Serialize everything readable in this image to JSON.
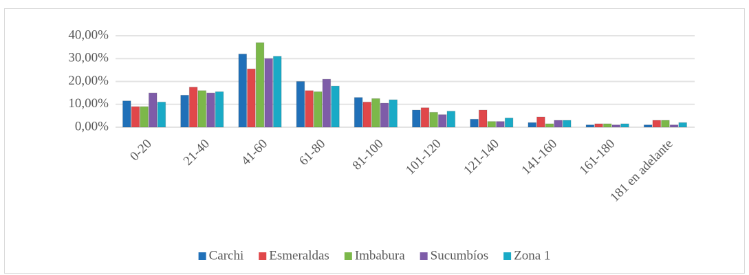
{
  "chart_data": {
    "type": "bar",
    "categories": [
      "0-20",
      "21-40",
      "41-60",
      "61-80",
      "81-100",
      "101-120",
      "121-140",
      "141-160",
      "161-180",
      "181 en adelante"
    ],
    "series": [
      {
        "name": "Carchi",
        "color": "#2070b8",
        "values": [
          11.5,
          14,
          32,
          20,
          13,
          7.5,
          3.5,
          2,
          1,
          1
        ]
      },
      {
        "name": "Esmeraldas",
        "color": "#e0474a",
        "values": [
          9,
          17.5,
          25.5,
          16,
          11,
          8.5,
          7.5,
          4.5,
          1.5,
          3
        ]
      },
      {
        "name": "Imbabura",
        "color": "#7cb84a",
        "values": [
          9,
          16,
          37,
          15.5,
          12.5,
          6.5,
          2.5,
          1.5,
          1.5,
          3
        ]
      },
      {
        "name": "Sucumbíos",
        "color": "#7e5ca8",
        "values": [
          15,
          15,
          30,
          21,
          10.5,
          5.5,
          2.5,
          3,
          1,
          1
        ]
      },
      {
        "name": "Zona 1",
        "color": "#1aaac6",
        "values": [
          11,
          15.5,
          31,
          18,
          12,
          7,
          4,
          3,
          1.5,
          2
        ]
      }
    ],
    "ylim": [
      0,
      40
    ],
    "yticks": [
      {
        "value": 0,
        "label": "0,00%"
      },
      {
        "value": 10,
        "label": "10,00%"
      },
      {
        "value": 20,
        "label": "20,00%"
      },
      {
        "value": 30,
        "label": "30,00%"
      },
      {
        "value": 40,
        "label": "40,00%"
      }
    ],
    "grid": true,
    "legend": "bottom"
  }
}
